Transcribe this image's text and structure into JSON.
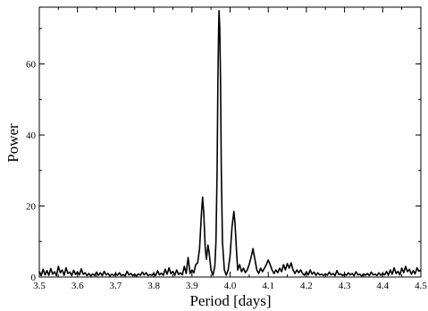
{
  "chart_data": {
    "type": "line",
    "title": "",
    "xlabel": "Period [days]",
    "ylabel": "Power",
    "xlim": [
      3.5,
      4.5
    ],
    "ylim": [
      0,
      76
    ],
    "grid": false,
    "xticks": [
      3.5,
      3.6,
      3.7,
      3.8,
      3.9,
      4.0,
      4.1,
      4.2,
      4.3,
      4.4,
      4.5
    ],
    "xtick_labels": [
      "3.5",
      "3.6",
      "3.7",
      "3.8",
      "3.9",
      "4.0",
      "4.1",
      "4.2",
      "4.3",
      "4.4",
      "4.5"
    ],
    "yticks": [
      0,
      20,
      40,
      60
    ],
    "ytick_labels": [
      "0",
      "20",
      "40",
      "60"
    ],
    "series": [
      {
        "color": "#000000",
        "points": [
          [
            3.5,
            1.6
          ],
          [
            3.505,
            0.4
          ],
          [
            3.51,
            2.2
          ],
          [
            3.515,
            0.6
          ],
          [
            3.52,
            1.8
          ],
          [
            3.525,
            0.5
          ],
          [
            3.53,
            2.4
          ],
          [
            3.535,
            0.8
          ],
          [
            3.54,
            1.5
          ],
          [
            3.545,
            0.4
          ],
          [
            3.55,
            3.0
          ],
          [
            3.555,
            1.2
          ],
          [
            3.56,
            2.0
          ],
          [
            3.565,
            0.5
          ],
          [
            3.57,
            2.6
          ],
          [
            3.575,
            1.0
          ],
          [
            3.58,
            1.4
          ],
          [
            3.585,
            0.4
          ],
          [
            3.59,
            1.9
          ],
          [
            3.595,
            0.7
          ],
          [
            3.6,
            1.5
          ],
          [
            3.605,
            0.6
          ],
          [
            3.61,
            2.3
          ],
          [
            3.615,
            0.8
          ],
          [
            3.62,
            1.2
          ],
          [
            3.625,
            0.4
          ],
          [
            3.63,
            1.0
          ],
          [
            3.635,
            0.3
          ],
          [
            3.64,
            0.9
          ],
          [
            3.645,
            0.4
          ],
          [
            3.65,
            1.4
          ],
          [
            3.655,
            0.5
          ],
          [
            3.66,
            1.2
          ],
          [
            3.665,
            0.4
          ],
          [
            3.67,
            1.6
          ],
          [
            3.675,
            0.6
          ],
          [
            3.68,
            1.0
          ],
          [
            3.685,
            0.3
          ],
          [
            3.69,
            0.8
          ],
          [
            3.695,
            0.4
          ],
          [
            3.7,
            1.0
          ],
          [
            3.705,
            0.5
          ],
          [
            3.71,
            1.2
          ],
          [
            3.715,
            0.4
          ],
          [
            3.72,
            0.7
          ],
          [
            3.725,
            0.3
          ],
          [
            3.73,
            1.6
          ],
          [
            3.735,
            0.6
          ],
          [
            3.74,
            1.0
          ],
          [
            3.745,
            0.4
          ],
          [
            3.75,
            0.8
          ],
          [
            3.755,
            0.3
          ],
          [
            3.76,
            0.9
          ],
          [
            3.765,
            0.5
          ],
          [
            3.77,
            1.4
          ],
          [
            3.775,
            0.6
          ],
          [
            3.78,
            1.2
          ],
          [
            3.785,
            0.4
          ],
          [
            3.79,
            0.7
          ],
          [
            3.795,
            0.5
          ],
          [
            3.8,
            1.0
          ],
          [
            3.805,
            0.4
          ],
          [
            3.81,
            1.8
          ],
          [
            3.815,
            0.6
          ],
          [
            3.82,
            1.1
          ],
          [
            3.825,
            0.5
          ],
          [
            3.83,
            2.2
          ],
          [
            3.835,
            0.8
          ],
          [
            3.84,
            2.6
          ],
          [
            3.845,
            0.9
          ],
          [
            3.85,
            1.6
          ],
          [
            3.855,
            0.5
          ],
          [
            3.86,
            2.0
          ],
          [
            3.865,
            0.7
          ],
          [
            3.87,
            1.2
          ],
          [
            3.875,
            0.6
          ],
          [
            3.88,
            3.0
          ],
          [
            3.885,
            1.0
          ],
          [
            3.89,
            5.5
          ],
          [
            3.895,
            1.0
          ],
          [
            3.9,
            2.0
          ],
          [
            3.905,
            1.2
          ],
          [
            3.91,
            3.5
          ],
          [
            3.915,
            4.0
          ],
          [
            3.92,
            8.0
          ],
          [
            3.925,
            18.0
          ],
          [
            3.928,
            22.5
          ],
          [
            3.931,
            18.0
          ],
          [
            3.935,
            8.0
          ],
          [
            3.938,
            5.0
          ],
          [
            3.942,
            9.0
          ],
          [
            3.945,
            7.0
          ],
          [
            3.95,
            2.0
          ],
          [
            3.955,
            0.5
          ],
          [
            3.96,
            3.0
          ],
          [
            3.963,
            10.0
          ],
          [
            3.966,
            30.0
          ],
          [
            3.968,
            55.0
          ],
          [
            3.97,
            70.0
          ],
          [
            3.971,
            75.0
          ],
          [
            3.973,
            70.0
          ],
          [
            3.975,
            55.0
          ],
          [
            3.977,
            30.0
          ],
          [
            3.98,
            10.0
          ],
          [
            3.985,
            2.0
          ],
          [
            3.99,
            0.5
          ],
          [
            3.995,
            2.0
          ],
          [
            4.0,
            6.0
          ],
          [
            4.005,
            14.0
          ],
          [
            4.01,
            18.5
          ],
          [
            4.013,
            15.0
          ],
          [
            4.017,
            7.0
          ],
          [
            4.02,
            2.0
          ],
          [
            4.025,
            3.5
          ],
          [
            4.03,
            1.5
          ],
          [
            4.035,
            2.5
          ],
          [
            4.04,
            1.2
          ],
          [
            4.045,
            2.0
          ],
          [
            4.05,
            3.5
          ],
          [
            4.055,
            5.5
          ],
          [
            4.06,
            8.0
          ],
          [
            4.065,
            5.0
          ],
          [
            4.07,
            2.0
          ],
          [
            4.075,
            1.0
          ],
          [
            4.08,
            2.5
          ],
          [
            4.085,
            1.5
          ],
          [
            4.09,
            2.5
          ],
          [
            4.095,
            3.5
          ],
          [
            4.1,
            4.8
          ],
          [
            4.105,
            3.5
          ],
          [
            4.11,
            2.0
          ],
          [
            4.115,
            1.0
          ],
          [
            4.12,
            2.0
          ],
          [
            4.125,
            1.2
          ],
          [
            4.13,
            2.5
          ],
          [
            4.135,
            1.5
          ],
          [
            4.14,
            3.5
          ],
          [
            4.145,
            2.0
          ],
          [
            4.15,
            3.8
          ],
          [
            4.155,
            2.5
          ],
          [
            4.16,
            4.0
          ],
          [
            4.165,
            2.0
          ],
          [
            4.17,
            1.0
          ],
          [
            4.175,
            2.0
          ],
          [
            4.18,
            1.2
          ],
          [
            4.185,
            2.0
          ],
          [
            4.19,
            1.0
          ],
          [
            4.195,
            0.5
          ],
          [
            4.2,
            1.5
          ],
          [
            4.205,
            0.6
          ],
          [
            4.21,
            2.0
          ],
          [
            4.215,
            0.8
          ],
          [
            4.22,
            1.4
          ],
          [
            4.225,
            0.5
          ],
          [
            4.23,
            1.2
          ],
          [
            4.235,
            0.6
          ],
          [
            4.24,
            0.8
          ],
          [
            4.245,
            0.4
          ],
          [
            4.25,
            0.9
          ],
          [
            4.255,
            0.5
          ],
          [
            4.26,
            1.4
          ],
          [
            4.265,
            0.6
          ],
          [
            4.27,
            1.0
          ],
          [
            4.275,
            0.4
          ],
          [
            4.28,
            1.8
          ],
          [
            4.285,
            0.7
          ],
          [
            4.29,
            0.9
          ],
          [
            4.295,
            0.4
          ],
          [
            4.3,
            0.8
          ],
          [
            4.305,
            0.5
          ],
          [
            4.31,
            1.2
          ],
          [
            4.315,
            0.6
          ],
          [
            4.32,
            1.0
          ],
          [
            4.325,
            0.4
          ],
          [
            4.33,
            1.5
          ],
          [
            4.335,
            0.6
          ],
          [
            4.34,
            0.8
          ],
          [
            4.345,
            0.3
          ],
          [
            4.35,
            0.9
          ],
          [
            4.355,
            0.5
          ],
          [
            4.36,
            1.0
          ],
          [
            4.365,
            0.4
          ],
          [
            4.37,
            1.4
          ],
          [
            4.375,
            0.6
          ],
          [
            4.38,
            0.8
          ],
          [
            4.385,
            0.4
          ],
          [
            4.39,
            1.2
          ],
          [
            4.395,
            0.5
          ],
          [
            4.4,
            1.0
          ],
          [
            4.405,
            0.6
          ],
          [
            4.41,
            1.6
          ],
          [
            4.415,
            0.5
          ],
          [
            4.42,
            2.0
          ],
          [
            4.425,
            0.8
          ],
          [
            4.43,
            2.6
          ],
          [
            4.435,
            1.0
          ],
          [
            4.44,
            1.6
          ],
          [
            4.445,
            0.6
          ],
          [
            4.45,
            2.5
          ],
          [
            4.455,
            1.2
          ],
          [
            4.46,
            3.0
          ],
          [
            4.465,
            1.5
          ],
          [
            4.47,
            2.2
          ],
          [
            4.475,
            0.8
          ],
          [
            4.48,
            1.8
          ],
          [
            4.485,
            0.9
          ],
          [
            4.49,
            2.6
          ],
          [
            4.495,
            1.6
          ],
          [
            4.5,
            2.0
          ]
        ]
      }
    ]
  }
}
